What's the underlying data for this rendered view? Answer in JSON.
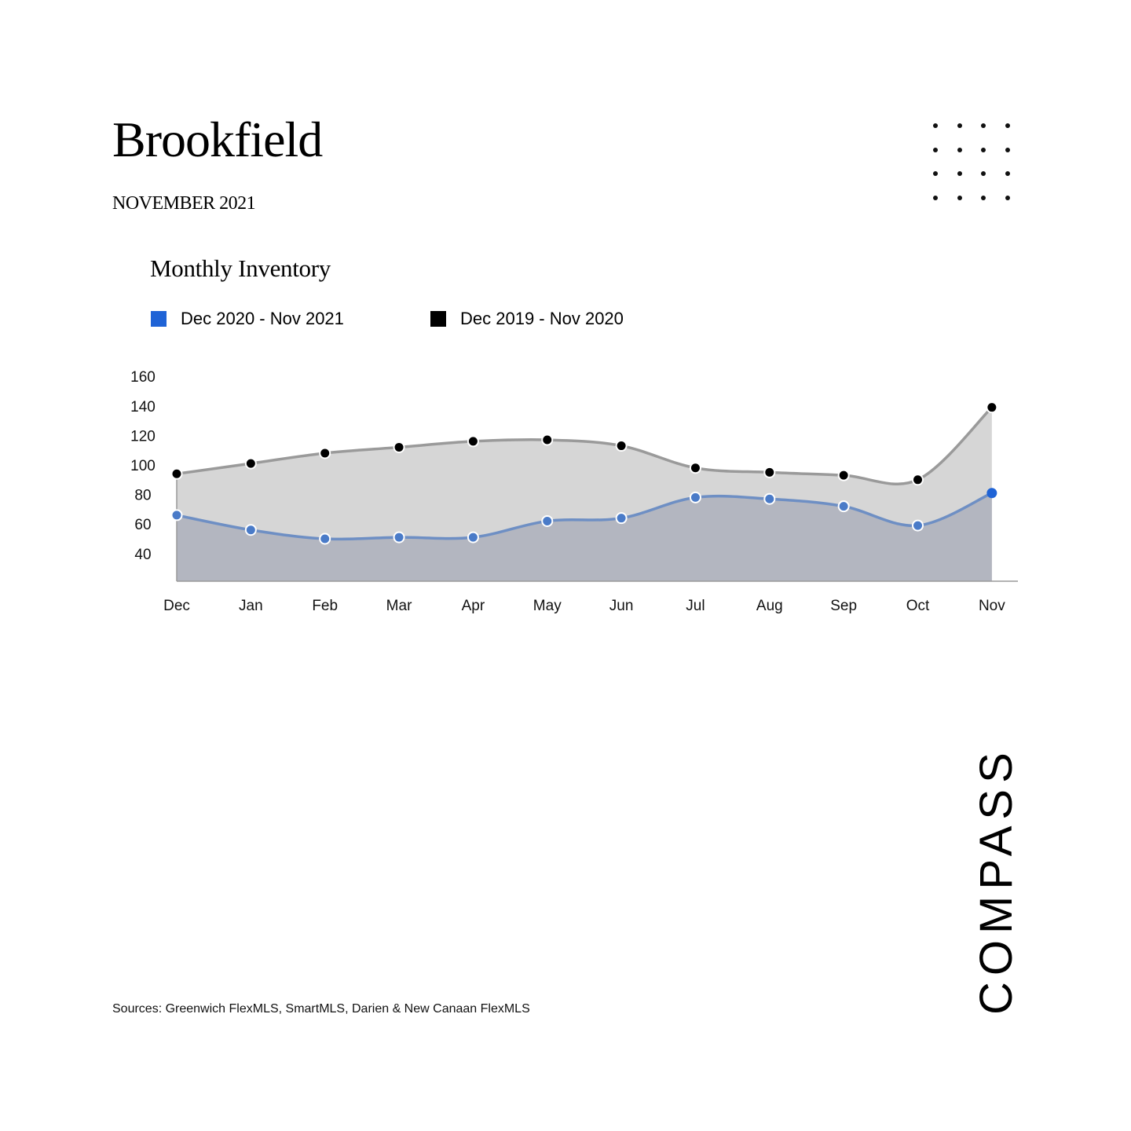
{
  "header": {
    "title": "Brookfield",
    "subtitle": "NOVEMBER 2021"
  },
  "brand_logo": "COMPASS",
  "sources": "Sources: Greenwich FlexMLS, SmartMLS, Darien & New Canaan FlexMLS",
  "colors": {
    "current_series": "#1f63d6",
    "current_line": "#6e8fc4",
    "current_area": "#b3b6c0",
    "prior_series": "#000000",
    "prior_line": "#9a9a9a",
    "prior_area": "#d6d6d6"
  },
  "chart_data": {
    "type": "area",
    "title": "Monthly Inventory",
    "xlabel": "",
    "ylabel": "",
    "categories": [
      "Dec",
      "Jan",
      "Feb",
      "Mar",
      "Apr",
      "May",
      "Jun",
      "Jul",
      "Aug",
      "Sep",
      "Oct",
      "Nov"
    ],
    "y_ticks": [
      "160",
      "140",
      "120",
      "100",
      "80",
      "60",
      "40"
    ],
    "ylim": [
      20,
      160
    ],
    "grid": false,
    "legend_position": "top-left",
    "series": [
      {
        "name": "Dec 2020 - Nov 2021",
        "values": [
          66,
          56,
          50,
          51,
          51,
          62,
          64,
          78,
          77,
          72,
          59,
          81
        ]
      },
      {
        "name": "Dec 2019 - Nov 2020",
        "values": [
          94,
          101,
          108,
          112,
          116,
          117,
          113,
          98,
          95,
          93,
          90,
          139
        ]
      }
    ]
  }
}
